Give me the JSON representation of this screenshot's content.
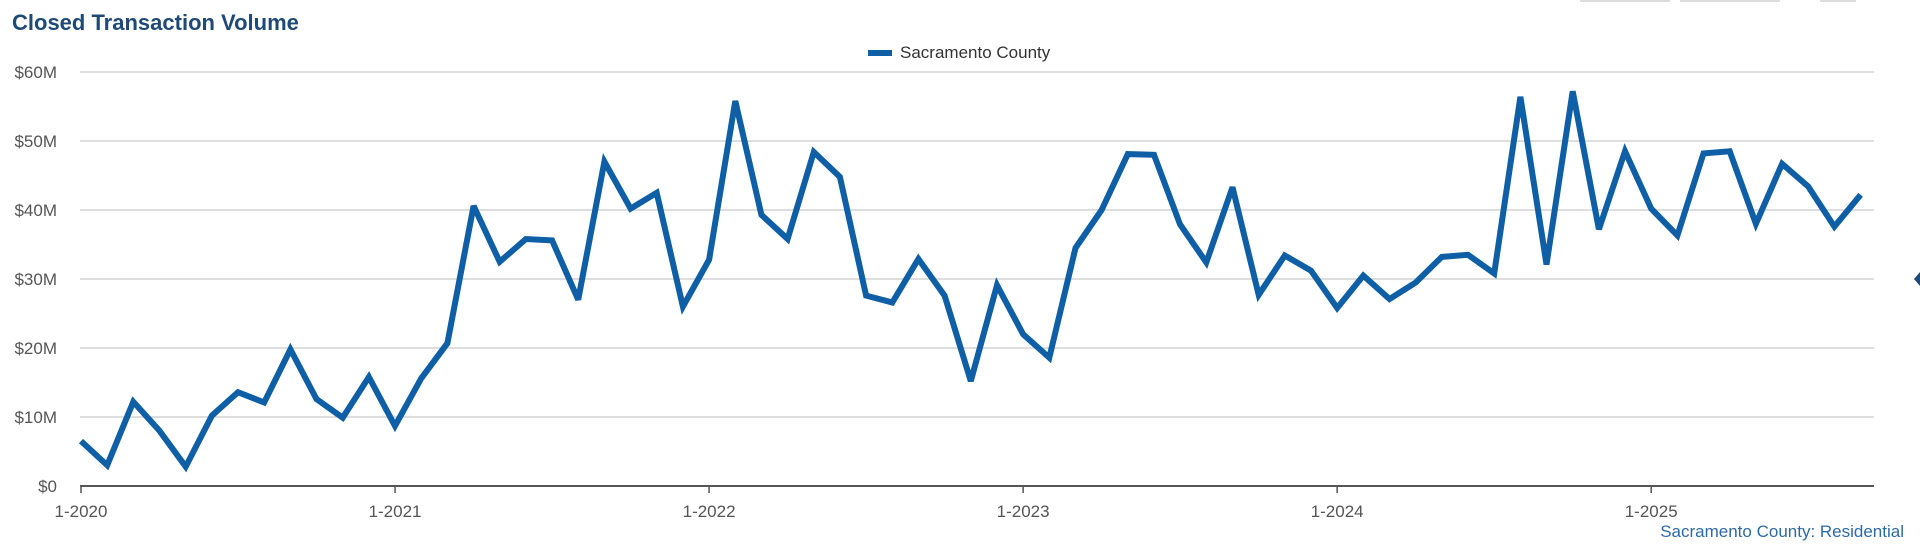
{
  "title": "Closed Transaction Volume",
  "caption": "Sacramento County: Residential",
  "colors": {
    "line": "#0f5fa6",
    "title": "#1f4a78",
    "grid": "#c9c9c9",
    "axis": "#555555",
    "caption": "#2d6aa8"
  },
  "chart_data": {
    "type": "line",
    "title": "Closed Transaction Volume",
    "xlabel": "",
    "ylabel": "",
    "ylim": [
      0,
      60
    ],
    "y_unit": "$M",
    "grid": true,
    "legend_position": "top-center",
    "y_ticks": [
      {
        "value": 0,
        "label": "$0"
      },
      {
        "value": 10,
        "label": "$10M"
      },
      {
        "value": 20,
        "label": "$20M"
      },
      {
        "value": 30,
        "label": "$30M"
      },
      {
        "value": 40,
        "label": "$40M"
      },
      {
        "value": 50,
        "label": "$50M"
      },
      {
        "value": 60,
        "label": "$60M"
      }
    ],
    "x_ticks": [
      "1-2020",
      "1-2021",
      "1-2022",
      "1-2023",
      "1-2024",
      "1-2025"
    ],
    "x_start": "1-2020",
    "x_end": "9-2025",
    "series": [
      {
        "name": "Sacramento County",
        "values": [
          6.5,
          3.0,
          12.2,
          8.0,
          2.8,
          10.2,
          13.6,
          12.1,
          19.8,
          12.6,
          9.9,
          15.8,
          8.7,
          15.6,
          20.7,
          40.6,
          32.5,
          35.8,
          35.6,
          27.0,
          47.0,
          40.2,
          42.5,
          26.0,
          32.8,
          55.8,
          39.3,
          35.8,
          48.4,
          44.8,
          27.6,
          26.6,
          32.9,
          27.6,
          15.2,
          29.1,
          22.0,
          18.6,
          34.5,
          40.0,
          48.1,
          48.0,
          37.9,
          32.4,
          43.3,
          27.7,
          33.4,
          31.2,
          25.8,
          30.5,
          27.1,
          29.5,
          33.2,
          33.5,
          30.8,
          56.4,
          32.1,
          57.2,
          37.2,
          48.5,
          40.2,
          36.3,
          48.2,
          48.5,
          38.0,
          46.7,
          43.4,
          37.6,
          42.2
        ]
      }
    ]
  }
}
